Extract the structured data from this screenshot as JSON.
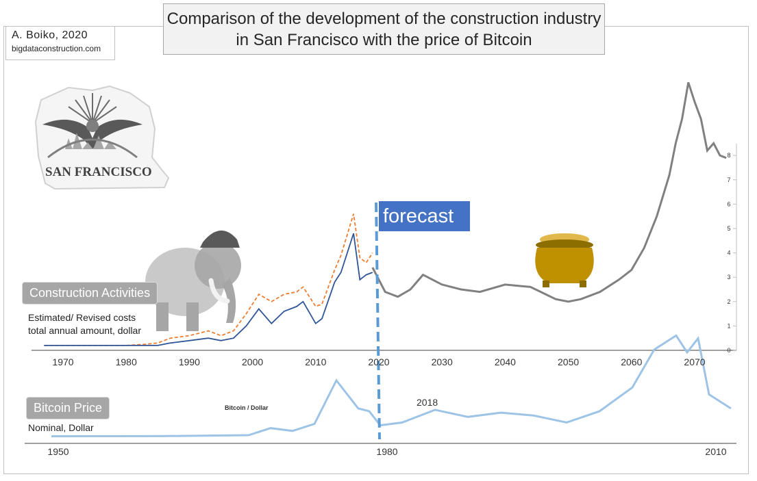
{
  "title": "Comparison of the development of the construction industry in San Francisco with the price of Bitcoin",
  "author": {
    "name": "A. Boiko, 2020",
    "site": "bigdataconstruction.com"
  },
  "logo": {
    "text": "SAN FRANCISCO",
    "icon": "eagle-icon"
  },
  "badges": {
    "construction": "Construction Activities",
    "bitcoin": "Bitcoin Price"
  },
  "captions": {
    "construction_line1": "Estimated/ Revised costs",
    "construction_line2": "total annual amount, dollar",
    "bitcoin": "Nominal, Dollar"
  },
  "forecast_label": "forecast",
  "bitcoin_inner_label": "Bitcoin / Dollar",
  "annotation_2018": "2018",
  "colors": {
    "estimated": "#ed7d31",
    "revised": "#2f5597",
    "forecast": "#808080",
    "bitcoin": "#9dc3e6",
    "forecast_box": "#4472c4",
    "divider": "#5b9bd5"
  },
  "chart_data": [
    {
      "type": "line",
      "title": "",
      "x_ticks": [
        "1970",
        "1980",
        "1990",
        "2000",
        "2010",
        "2020",
        "2030",
        "2040",
        "2050",
        "2060",
        "2070"
      ],
      "series": [
        {
          "x": [
            1967,
            1975,
            1980,
            1983,
            1985,
            1987,
            1990,
            1993,
            1995,
            1997,
            1999,
            2001,
            2003,
            2005,
            2007,
            2008,
            2010,
            2011,
            2013,
            2014,
            2016,
            2017,
            2018,
            2019
          ],
          "values": [
            0.2,
            0.2,
            0.2,
            0.25,
            0.3,
            0.5,
            0.6,
            0.8,
            0.6,
            0.8,
            1.5,
            2.3,
            2.0,
            2.3,
            2.4,
            2.6,
            1.8,
            1.9,
            3.3,
            3.9,
            5.6,
            3.8,
            3.6,
            4.0
          ]
        },
        {
          "x": [
            1967,
            1975,
            1980,
            1983,
            1985,
            1987,
            1990,
            1993,
            1995,
            1997,
            1999,
            2001,
            2003,
            2005,
            2007,
            2008,
            2010,
            2011,
            2013,
            2014,
            2016,
            2017,
            2018,
            2019
          ],
          "values": [
            0.2,
            0.2,
            0.2,
            0.2,
            0.2,
            0.3,
            0.4,
            0.5,
            0.4,
            0.5,
            1.0,
            1.7,
            1.1,
            1.6,
            1.8,
            2.0,
            1.1,
            1.3,
            2.8,
            3.2,
            4.8,
            2.9,
            3.1,
            3.2
          ]
        },
        {
          "x": [
            2019,
            2021,
            2023,
            2025,
            2027,
            2030,
            2033,
            2036,
            2040,
            2044,
            2048,
            2050,
            2052,
            2055,
            2058,
            2060,
            2062,
            2064,
            2066,
            2067,
            2068,
            2069,
            2070,
            2071,
            2072,
            2073,
            2074,
            2075
          ],
          "values": [
            3.4,
            2.4,
            2.2,
            2.5,
            3.1,
            2.7,
            2.5,
            2.4,
            2.7,
            2.6,
            2.1,
            2.0,
            2.1,
            2.4,
            2.9,
            3.3,
            4.2,
            5.5,
            7.2,
            8.5,
            9.5,
            11.0,
            10.2,
            9.5,
            8.2,
            8.5,
            8.0,
            7.9
          ]
        }
      ],
      "right_ticks": [
        "0",
        "1",
        "2",
        "3",
        "4",
        "5",
        "6",
        "7",
        "8"
      ],
      "ylim": [
        0,
        8
      ]
    },
    {
      "type": "line",
      "title": "Bitcoin / Dollar",
      "x_ticks": [
        "1950",
        "1980",
        "2010"
      ],
      "series": [
        {
          "x": [
            1950,
            1960,
            1968,
            1970,
            1972,
            1974,
            1976,
            1978,
            1979,
            1980,
            1982,
            1985,
            1988,
            1991,
            1994,
            1997,
            2000,
            2003,
            2005,
            2007,
            2008,
            2009,
            2010,
            2011,
            2012
          ],
          "values": [
            0.02,
            0.03,
            0.1,
            0.6,
            0.4,
            0.9,
            4.0,
            2.0,
            1.8,
            0.8,
            1.0,
            1.9,
            1.4,
            1.7,
            1.5,
            1.0,
            1.8,
            3.5,
            6.2,
            7.2,
            6.0,
            7.0,
            3.0,
            2.5,
            2.0
          ]
        }
      ]
    }
  ]
}
